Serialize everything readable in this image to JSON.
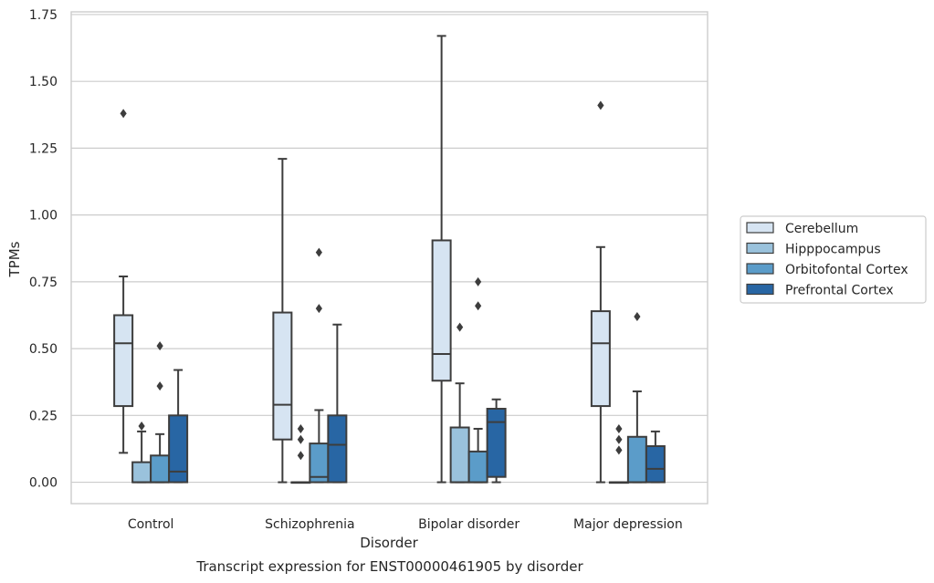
{
  "chart_data": {
    "type": "box",
    "xlabel": "Disorder",
    "ylabel": "TPMs",
    "caption": "Transcript expression for ENST00000461905 by disorder",
    "ylim": [
      -0.08,
      1.76
    ],
    "yticks": [
      0.0,
      0.25,
      0.5,
      0.75,
      1.0,
      1.25,
      1.5,
      1.75
    ],
    "ytick_labels": [
      "0.00",
      "0.25",
      "0.50",
      "0.75",
      "1.00",
      "1.25",
      "1.50",
      "1.75"
    ],
    "grid": "horizontal",
    "legend_position": "outside-right",
    "categories": [
      "Control",
      "Schizophrenia",
      "Bipolar disorder",
      "Major depression"
    ],
    "series": [
      {
        "name": "Cerebellum",
        "color": "#d6e4f2",
        "boxes": [
          {
            "min": 0.11,
            "q1": 0.285,
            "median": 0.52,
            "q3": 0.625,
            "max": 0.77,
            "outliers": [
              1.38
            ]
          },
          {
            "min": 0.0,
            "q1": 0.16,
            "median": 0.29,
            "q3": 0.635,
            "max": 1.21,
            "outliers": []
          },
          {
            "min": 0.0,
            "q1": 0.38,
            "median": 0.48,
            "q3": 0.905,
            "max": 1.67,
            "outliers": []
          },
          {
            "min": 0.0,
            "q1": 0.285,
            "median": 0.52,
            "q3": 0.64,
            "max": 0.88,
            "outliers": [
              1.41
            ]
          }
        ]
      },
      {
        "name": "Hipppocampus",
        "color": "#9ac2dc",
        "boxes": [
          {
            "min": 0.0,
            "q1": 0.0,
            "median": 0.0,
            "q3": 0.075,
            "max": 0.19,
            "outliers": [
              0.21
            ]
          },
          {
            "min": 0.0,
            "q1": 0.0,
            "median": 0.0,
            "q3": 0.0,
            "max": 0.0,
            "outliers": [
              0.1,
              0.16,
              0.2
            ]
          },
          {
            "min": 0.0,
            "q1": 0.0,
            "median": 0.0,
            "q3": 0.205,
            "max": 0.37,
            "outliers": [
              0.58
            ]
          },
          {
            "min": 0.0,
            "q1": 0.0,
            "median": 0.0,
            "q3": 0.0,
            "max": 0.0,
            "outliers": [
              0.12,
              0.16,
              0.2
            ]
          }
        ]
      },
      {
        "name": "Orbitofontal Cortex",
        "color": "#5b9cc9",
        "boxes": [
          {
            "min": 0.0,
            "q1": 0.0,
            "median": 0.0,
            "q3": 0.1,
            "max": 0.18,
            "outliers": [
              0.36,
              0.51
            ]
          },
          {
            "min": 0.0,
            "q1": 0.0,
            "median": 0.02,
            "q3": 0.145,
            "max": 0.27,
            "outliers": [
              0.65,
              0.86
            ]
          },
          {
            "min": 0.0,
            "q1": 0.0,
            "median": 0.0,
            "q3": 0.115,
            "max": 0.2,
            "outliers": [
              0.66,
              0.75
            ]
          },
          {
            "min": 0.0,
            "q1": 0.0,
            "median": 0.0,
            "q3": 0.17,
            "max": 0.34,
            "outliers": [
              0.62
            ]
          }
        ]
      },
      {
        "name": "Prefrontal Cortex",
        "color": "#2866a4",
        "boxes": [
          {
            "min": 0.0,
            "q1": 0.0,
            "median": 0.04,
            "q3": 0.25,
            "max": 0.42,
            "outliers": []
          },
          {
            "min": 0.0,
            "q1": 0.0,
            "median": 0.14,
            "q3": 0.25,
            "max": 0.59,
            "outliers": []
          },
          {
            "min": 0.0,
            "q1": 0.02,
            "median": 0.225,
            "q3": 0.275,
            "max": 0.31,
            "outliers": []
          },
          {
            "min": 0.0,
            "q1": 0.0,
            "median": 0.05,
            "q3": 0.135,
            "max": 0.19,
            "outliers": []
          }
        ]
      }
    ]
  }
}
